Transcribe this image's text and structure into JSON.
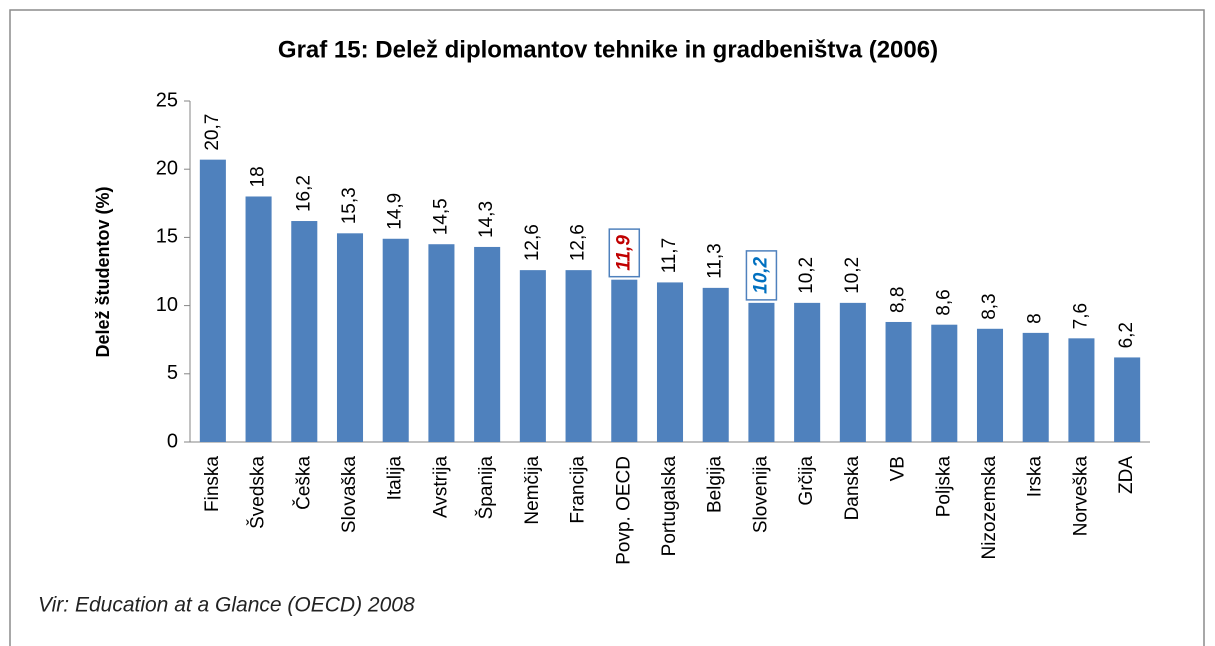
{
  "chart_data": {
    "type": "bar",
    "title": "Graf 15: Delež diplomantov tehnike in gradbeništva (2006)",
    "y_label": "Delež študentov (%)",
    "source": "Vir: Education at a Glance (OECD) 2008",
    "categories": [
      "Finska",
      "Švedska",
      "Češka",
      "Slovaška",
      "Italija",
      "Avstrija",
      "Španija",
      "Nemčija",
      "Francija",
      "Povp. OECD",
      "Portugalska",
      "Belgija",
      "Slovenija",
      "Grčija",
      "Danska",
      "VB",
      "Poljska",
      "Nizozemska",
      "Irska",
      "Norveška",
      "ZDA"
    ],
    "values": [
      20.7,
      18,
      16.2,
      15.3,
      14.9,
      14.5,
      14.3,
      12.6,
      12.6,
      11.9,
      11.7,
      11.3,
      10.2,
      10.2,
      10.2,
      8.8,
      8.6,
      8.3,
      8,
      7.6,
      6.2
    ],
    "value_labels": [
      "20,7",
      "18",
      "16,2",
      "15,3",
      "14,9",
      "14,5",
      "14,3",
      "12,6",
      "12,6",
      "11,9",
      "11,7",
      "11,3",
      "10,2",
      "10,2",
      "10,2",
      "8,8",
      "8,6",
      "8,3",
      "8",
      "7,6",
      "6,2"
    ],
    "color": "#4f81bd",
    "highlights": [
      {
        "index": 9,
        "color": "#c00000"
      },
      {
        "index": 12,
        "color": "#0070c0"
      }
    ],
    "ylim": [
      0,
      25
    ],
    "yticks": [
      0,
      5,
      10,
      15,
      20,
      25
    ],
    "grid": false
  }
}
